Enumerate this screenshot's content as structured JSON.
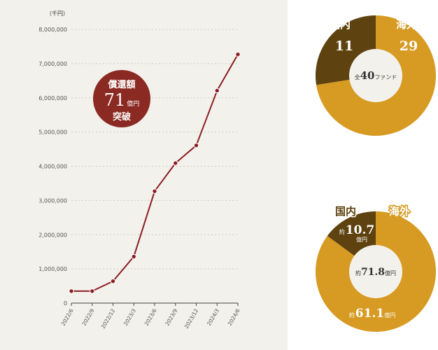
{
  "colors": {
    "line": "#8b1e24",
    "badge": "#8b2a22",
    "domestic": "#5e4310",
    "overseas": "#d79a22",
    "center": "#f3f1ec",
    "grid": "#cfcac0"
  },
  "chart_data": [
    {
      "type": "line",
      "unit_label": "（千円）",
      "y_ticks": [
        "8,000,000",
        "7,000,000",
        "6,000,000",
        "5,000,000",
        "4,000,000",
        "3,000,000",
        "2,000,000",
        "1,000,000",
        "0"
      ],
      "ylim": [
        0,
        8000000
      ],
      "categories": [
        "2022/6",
        "2022/9",
        "2022/12",
        "2023/3",
        "2023/6",
        "2023/9",
        "2023/12",
        "2024/3",
        "2024/6"
      ],
      "values": [
        350000,
        350000,
        640000,
        1360000,
        3270000,
        4090000,
        4610000,
        6210000,
        7270000
      ],
      "grid": true,
      "badge": {
        "line1": "償還額",
        "number": "71",
        "unit": "億円",
        "line3": "突破"
      }
    },
    {
      "type": "pie",
      "segments": [
        {
          "label": "国内",
          "value": 11
        },
        {
          "label": "海外",
          "value": 29
        }
      ],
      "center_prefix": "全",
      "center_number": "40",
      "center_suffix": "ファンド"
    },
    {
      "type": "pie",
      "segments": [
        {
          "label": "国内",
          "prefix": "約",
          "value": 10.7,
          "value_text": "10.7",
          "unit": "億円"
        },
        {
          "label": "海外",
          "prefix": "約",
          "value": 61.1,
          "value_text": "61.1",
          "unit": "億円"
        }
      ],
      "center_prefix": "約",
      "center_number": "71.8",
      "center_unit": "億円"
    }
  ]
}
